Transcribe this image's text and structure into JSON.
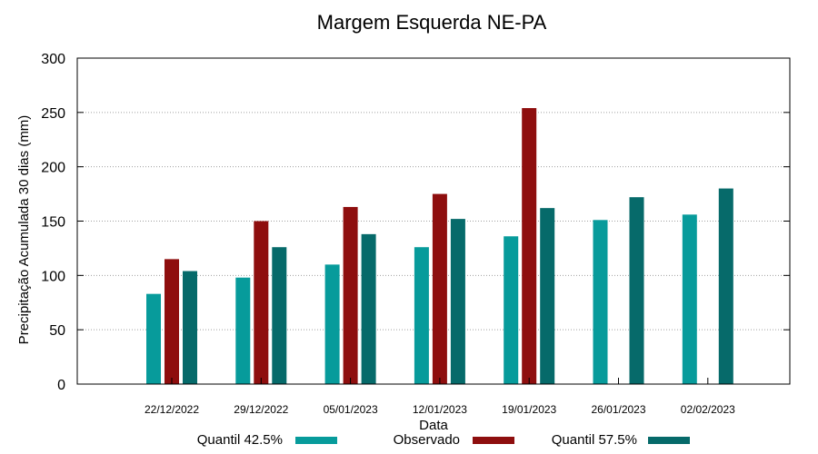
{
  "chart_data": {
    "type": "bar",
    "title": "Margem Esquerda NE-PA",
    "xlabel": "Data",
    "ylabel": "Precipitação Acumulada 30 dias (mm)",
    "ylim": [
      0,
      300
    ],
    "yticks": [
      "0",
      "50",
      "100",
      "150",
      "200",
      "250",
      "300"
    ],
    "grid": true,
    "legend_position": "bottom",
    "categories": [
      "22/12/2022",
      "29/12/2022",
      "05/01/2023",
      "12/01/2023",
      "19/01/2023",
      "26/01/2023",
      "02/02/2023"
    ],
    "series": [
      {
        "name": "Quantil 42.5%",
        "color": "#079b9b",
        "values": [
          83,
          98,
          110,
          126,
          136,
          151,
          156
        ]
      },
      {
        "name": "Observado",
        "color": "#8e0e0e",
        "values": [
          115,
          150,
          163,
          175,
          254,
          null,
          null
        ]
      },
      {
        "name": "Quantil 57.5%",
        "color": "#066a6a",
        "values": [
          104,
          126,
          138,
          152,
          162,
          172,
          180
        ]
      }
    ]
  }
}
